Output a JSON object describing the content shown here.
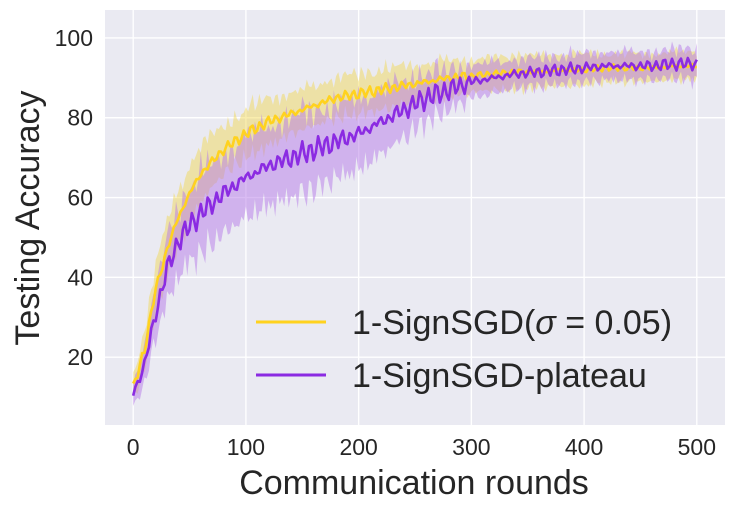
{
  "chart_data": {
    "type": "line",
    "xlabel": "Communication rounds",
    "ylabel": "Testing Accuracy",
    "xlim": [
      -25,
      525
    ],
    "ylim": [
      3,
      107
    ],
    "xticks": [
      0,
      100,
      200,
      300,
      400,
      500
    ],
    "yticks": [
      20,
      40,
      60,
      80,
      100
    ],
    "grid": true,
    "legend_position": "lower-right",
    "series": [
      {
        "name": "1-SignSGD(σ = 0.05)",
        "legend_prefix": "1-SignSGD(",
        "legend_symbol": "σ",
        "legend_suffix": " = 0.05)",
        "color": "#ffd21f",
        "band_color": "#f2d64a",
        "x": [
          0,
          10,
          20,
          30,
          40,
          50,
          60,
          80,
          100,
          120,
          140,
          160,
          180,
          200,
          220,
          240,
          260,
          280,
          300,
          320,
          340,
          360,
          380,
          400,
          420,
          440,
          460,
          480,
          500
        ],
        "values": [
          12,
          22,
          37,
          47,
          55,
          61,
          66,
          72,
          76,
          79,
          81,
          83,
          85,
          86,
          87,
          88,
          89,
          90,
          90.5,
          91,
          91.5,
          91.5,
          92,
          92,
          92.5,
          92.5,
          92.5,
          93,
          93
        ],
        "spread": [
          3,
          5,
          6,
          7,
          7,
          7,
          7,
          6,
          6,
          6,
          5,
          5,
          5,
          5,
          5,
          5,
          4.5,
          4.5,
          4,
          4,
          4.5,
          4,
          4,
          4,
          3.5,
          3.5,
          3.5,
          3.5,
          3.5
        ]
      },
      {
        "name": "1-SignSGD-plateau",
        "color": "#8b2be2",
        "band_color": "#b57ae8",
        "x": [
          0,
          10,
          20,
          30,
          40,
          50,
          60,
          80,
          100,
          120,
          140,
          160,
          180,
          200,
          220,
          240,
          260,
          280,
          300,
          320,
          340,
          360,
          380,
          400,
          420,
          440,
          460,
          480,
          500
        ],
        "values": [
          11,
          18,
          31,
          42,
          49,
          53,
          56,
          61,
          65,
          68,
          70,
          72,
          74,
          76,
          79,
          82,
          85,
          87,
          89,
          90,
          91,
          91.5,
          92,
          92.5,
          93,
          93,
          93,
          93.5,
          93.5
        ],
        "spread": [
          3,
          5,
          6,
          8,
          9,
          9,
          10,
          10,
          10,
          10,
          10,
          10,
          9,
          9,
          8,
          7,
          6,
          5,
          4,
          4,
          3.5,
          3.5,
          3.5,
          3.5,
          3.5,
          3.5,
          3.5,
          3.5,
          4
        ]
      }
    ]
  }
}
